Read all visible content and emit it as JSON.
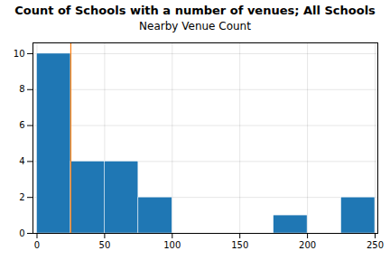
{
  "chart_data": {
    "type": "histogram",
    "title": "Count of Schools with a number of venues; All Schools",
    "subtitle": "Nearby Venue Count",
    "bins": [
      0,
      25,
      50,
      75,
      100,
      125,
      150,
      175,
      200,
      225,
      250
    ],
    "values": [
      10,
      4,
      4,
      2,
      0,
      0,
      0,
      1,
      0,
      2
    ],
    "color": "#1f77b4",
    "vline": {
      "x": 25,
      "color": "#ff7f0e"
    },
    "xlim": [
      -3,
      252
    ],
    "ylim": [
      0,
      10.6
    ],
    "xticks": [
      0,
      50,
      100,
      150,
      200,
      250
    ],
    "yticks": [
      0,
      2,
      4,
      6,
      8,
      10
    ],
    "grid": true
  }
}
